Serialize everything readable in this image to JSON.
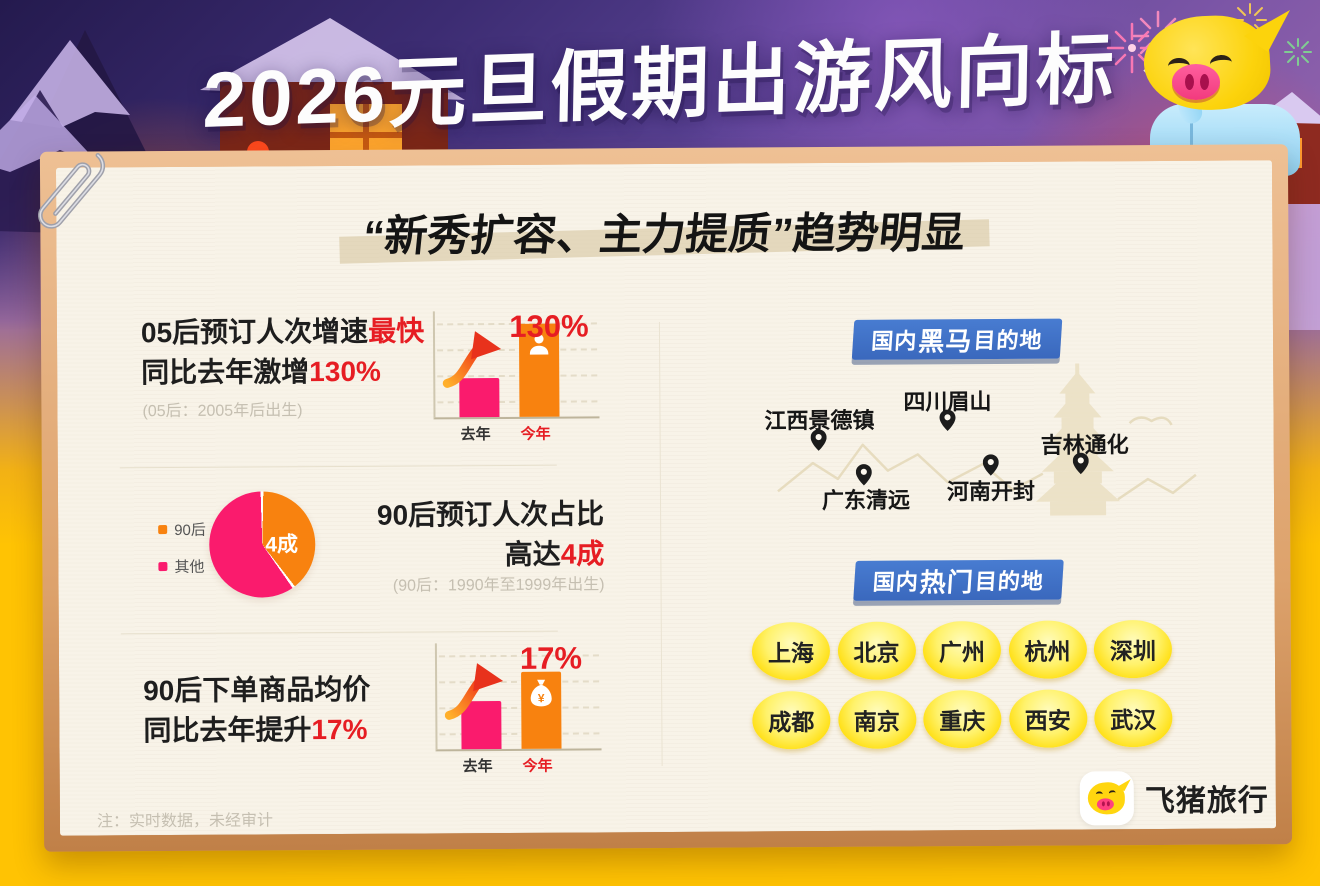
{
  "header": {
    "title": "2026元旦假期出游风向标"
  },
  "card": {
    "title": "“新秀扩容、主力提质”趋势明显",
    "footnote": "注：实时数据，未经审计"
  },
  "stat_blocks": {
    "block1": {
      "line1": "05后预订人次增速",
      "line1_em": "最快",
      "line2": "同比去年激增",
      "line2_em": "130%",
      "note": "(05后：2005年后出生)"
    },
    "block2": {
      "line1": "90后预订人次占比",
      "line2": "高达",
      "line2_em": "4成",
      "note": "(90后：1990年至1999年出生)"
    },
    "block3": {
      "line1": "90后下单商品均价",
      "line2": "同比去年提升",
      "line2_em": "17%"
    }
  },
  "chart_data": [
    {
      "type": "bar",
      "title": "05后预订人次 同比去年",
      "categories": [
        "去年",
        "今年"
      ],
      "values": [
        100,
        230
      ],
      "annotation": "130%",
      "colors": [
        "#fa1b6d",
        "#f8820f"
      ],
      "bar_height_pct": [
        37,
        88
      ],
      "note": "今年较去年激增130%，柱内为人像图标"
    },
    {
      "type": "pie",
      "title": "90后预订人次占比",
      "labels": [
        "90后",
        "其他"
      ],
      "values": [
        40,
        60
      ],
      "annotation": "4成",
      "colors": [
        "#f8820f",
        "#fa1b6d"
      ],
      "legend_position": "left"
    },
    {
      "type": "bar",
      "title": "90后下单商品均价 同比去年",
      "categories": [
        "去年",
        "今年"
      ],
      "values": [
        100,
        117
      ],
      "annotation": "17%",
      "colors": [
        "#fa1b6d",
        "#f8820f"
      ],
      "bar_height_pct": [
        45,
        73
      ],
      "note": "今年较去年提升17%，柱内为钱袋图标"
    }
  ],
  "dark_horse": {
    "badge_prefix": "国内",
    "badge_em": "黑马",
    "badge_suffix": "目的地",
    "destinations": [
      "江西景德镇",
      "四川眉山",
      "吉林通化",
      "广东清远",
      "河南开封"
    ]
  },
  "hot": {
    "badge_prefix": "国内",
    "badge_em": "热门",
    "badge_suffix": "目的地",
    "cities": [
      "上海",
      "北京",
      "广州",
      "杭州",
      "深圳",
      "成都",
      "南京",
      "重庆",
      "西安",
      "武汉"
    ]
  },
  "logo": {
    "brand": "飞猪旅行"
  },
  "colors": {
    "accent_red": "#e61d23",
    "bar_pink": "#fa1b6d",
    "bar_orange": "#f8820f",
    "badge_blue": "#3d6ec5",
    "pill_yellow": "#ffdf12",
    "background_yellow": "#ffc303",
    "paper": "#f8f3e8",
    "board_tan": "#dda26c"
  }
}
